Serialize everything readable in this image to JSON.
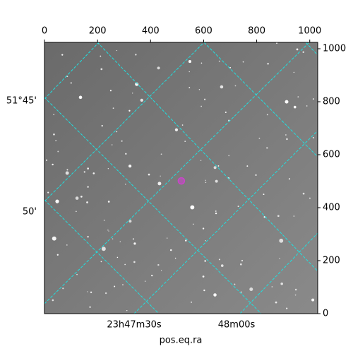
{
  "chart_data": {
    "type": "scatter",
    "xlabel": "pos.eq.ra",
    "xlim": [
      0,
      1030
    ],
    "ylim": [
      0,
      1024
    ],
    "xticks": [
      0,
      200,
      400,
      600,
      800,
      1000
    ],
    "yticks": [
      0,
      200,
      400,
      600,
      800,
      1000
    ],
    "world_xticks": [
      "23h47m30s",
      "48m00s"
    ],
    "world_yticks": [
      "51°45'",
      "50'"
    ],
    "x": [
      516
    ],
    "values": [
      501
    ],
    "color": "#cc44cc"
  }
}
